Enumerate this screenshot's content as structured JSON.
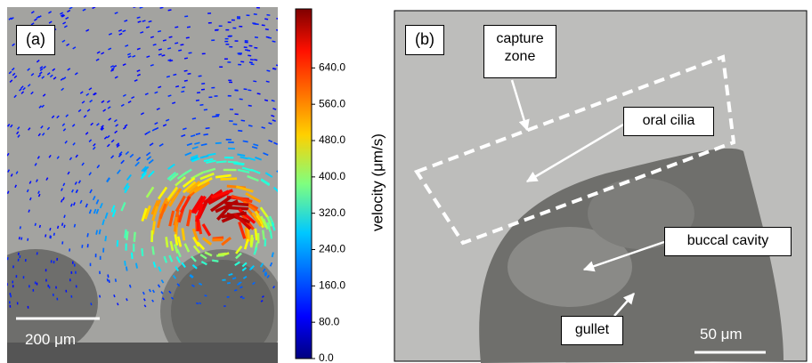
{
  "panel_a": {
    "label": "(a)",
    "scale_bar": "200 μm"
  },
  "colorbar": {
    "label": "velocity (μm/s)",
    "lim": [
      0,
      770
    ],
    "ticks": [
      {
        "value": 0,
        "label": "0.0"
      },
      {
        "value": 80,
        "label": "80.0"
      },
      {
        "value": 160,
        "label": "160.0"
      },
      {
        "value": 240,
        "label": "240.0"
      },
      {
        "value": 320,
        "label": "320.0"
      },
      {
        "value": 400,
        "label": "400.0"
      },
      {
        "value": 480,
        "label": "480.0"
      },
      {
        "value": 560,
        "label": "560.0"
      },
      {
        "value": 640,
        "label": "640.0"
      }
    ]
  },
  "panel_b": {
    "label": "(b)",
    "scale_bar": "50 μm",
    "annotations": {
      "capture_zone": "capture zone",
      "oral_cilia": "oral cilia",
      "buccal_cavity": "buccal cavity",
      "gullet": "gullet"
    }
  }
}
